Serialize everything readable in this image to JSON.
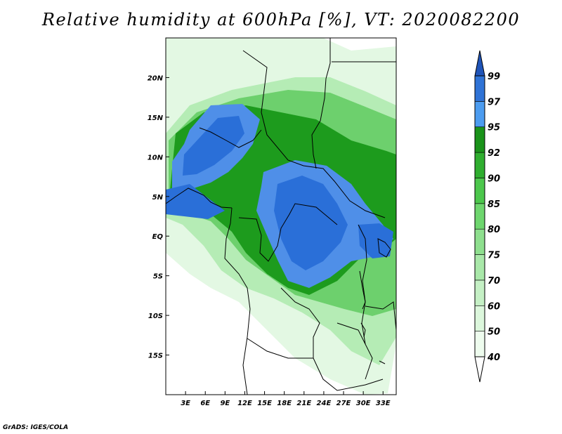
{
  "title": "Relative humidity at 600hPa [%], VT: 2020082200",
  "credit": "GrADS: IGES/COLA",
  "map": {
    "lon_range": [
      0,
      35
    ],
    "lat_range": [
      -20,
      25
    ],
    "lon_ticks": [
      "3E",
      "6E",
      "9E",
      "12E",
      "15E",
      "18E",
      "21E",
      "24E",
      "27E",
      "30E",
      "33E"
    ],
    "lat_ticks": [
      "20N",
      "15N",
      "10N",
      "5N",
      "EQ",
      "5S",
      "10S",
      "15S"
    ]
  },
  "colorbar": {
    "levels": [
      "40",
      "50",
      "60",
      "70",
      "75",
      "80",
      "85",
      "90",
      "92",
      "95",
      "97",
      "99"
    ],
    "colors": [
      "#ffffff",
      "#eefcee",
      "#dcf7dc",
      "#c5f0c5",
      "#a9e8a9",
      "#8edf8e",
      "#6ed66e",
      "#4cc74c",
      "#2fae2f",
      "#1a931a",
      "#4c9cf0",
      "#2f73d6",
      "#1f54b8"
    ]
  },
  "fill_colors": {
    "land": "#ffffff",
    "rh_40_60": "#e3f8e3",
    "rh_60_80": "#b5ecb5",
    "rh_80_90": "#6dd06d",
    "rh_90_95": "#1d9b1d",
    "rh_95_97": "#4f8fe8",
    "rh_97_99": "#2a6fd8"
  }
}
